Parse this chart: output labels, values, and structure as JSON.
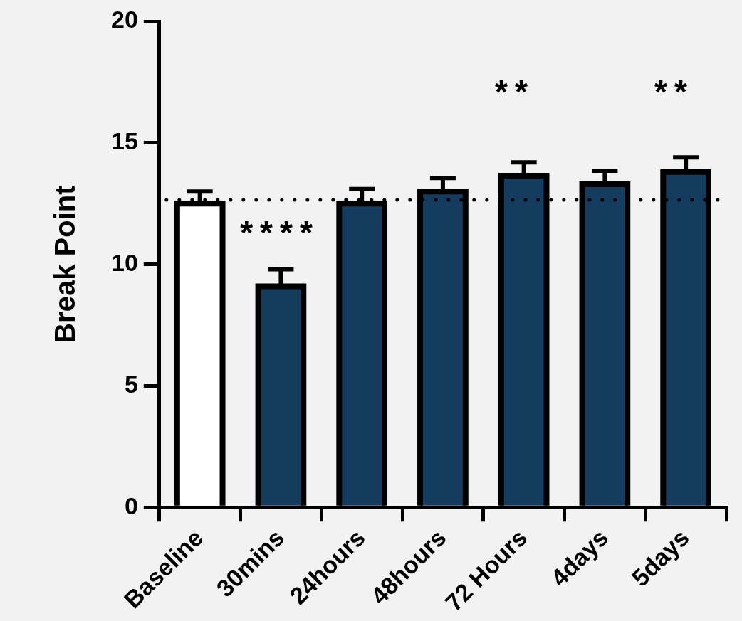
{
  "chart_data": {
    "type": "bar",
    "ylabel": "Break Point",
    "categories": [
      "Baseline",
      "30mins",
      "24hours",
      "48hours",
      "72 Hours",
      "4days",
      "5days"
    ],
    "values": [
      12.5,
      9.1,
      12.5,
      13.0,
      13.65,
      13.3,
      13.8
    ],
    "errors": [
      0.5,
      0.7,
      0.6,
      0.55,
      0.55,
      0.55,
      0.6
    ],
    "colors": [
      "#ffffff",
      "#133c5e",
      "#133c5e",
      "#133c5e",
      "#133c5e",
      "#133c5e",
      "#133c5e"
    ],
    "ylim": [
      0,
      20
    ],
    "yticks": [
      0,
      5,
      10,
      15,
      20
    ],
    "ref_lines": [
      {
        "axis": "y",
        "value": 12.65,
        "line_style": "dotted",
        "color": "#000000"
      }
    ],
    "annotations": [
      "****",
      "**",
      "**"
    ],
    "grid": false,
    "legend": false
  }
}
